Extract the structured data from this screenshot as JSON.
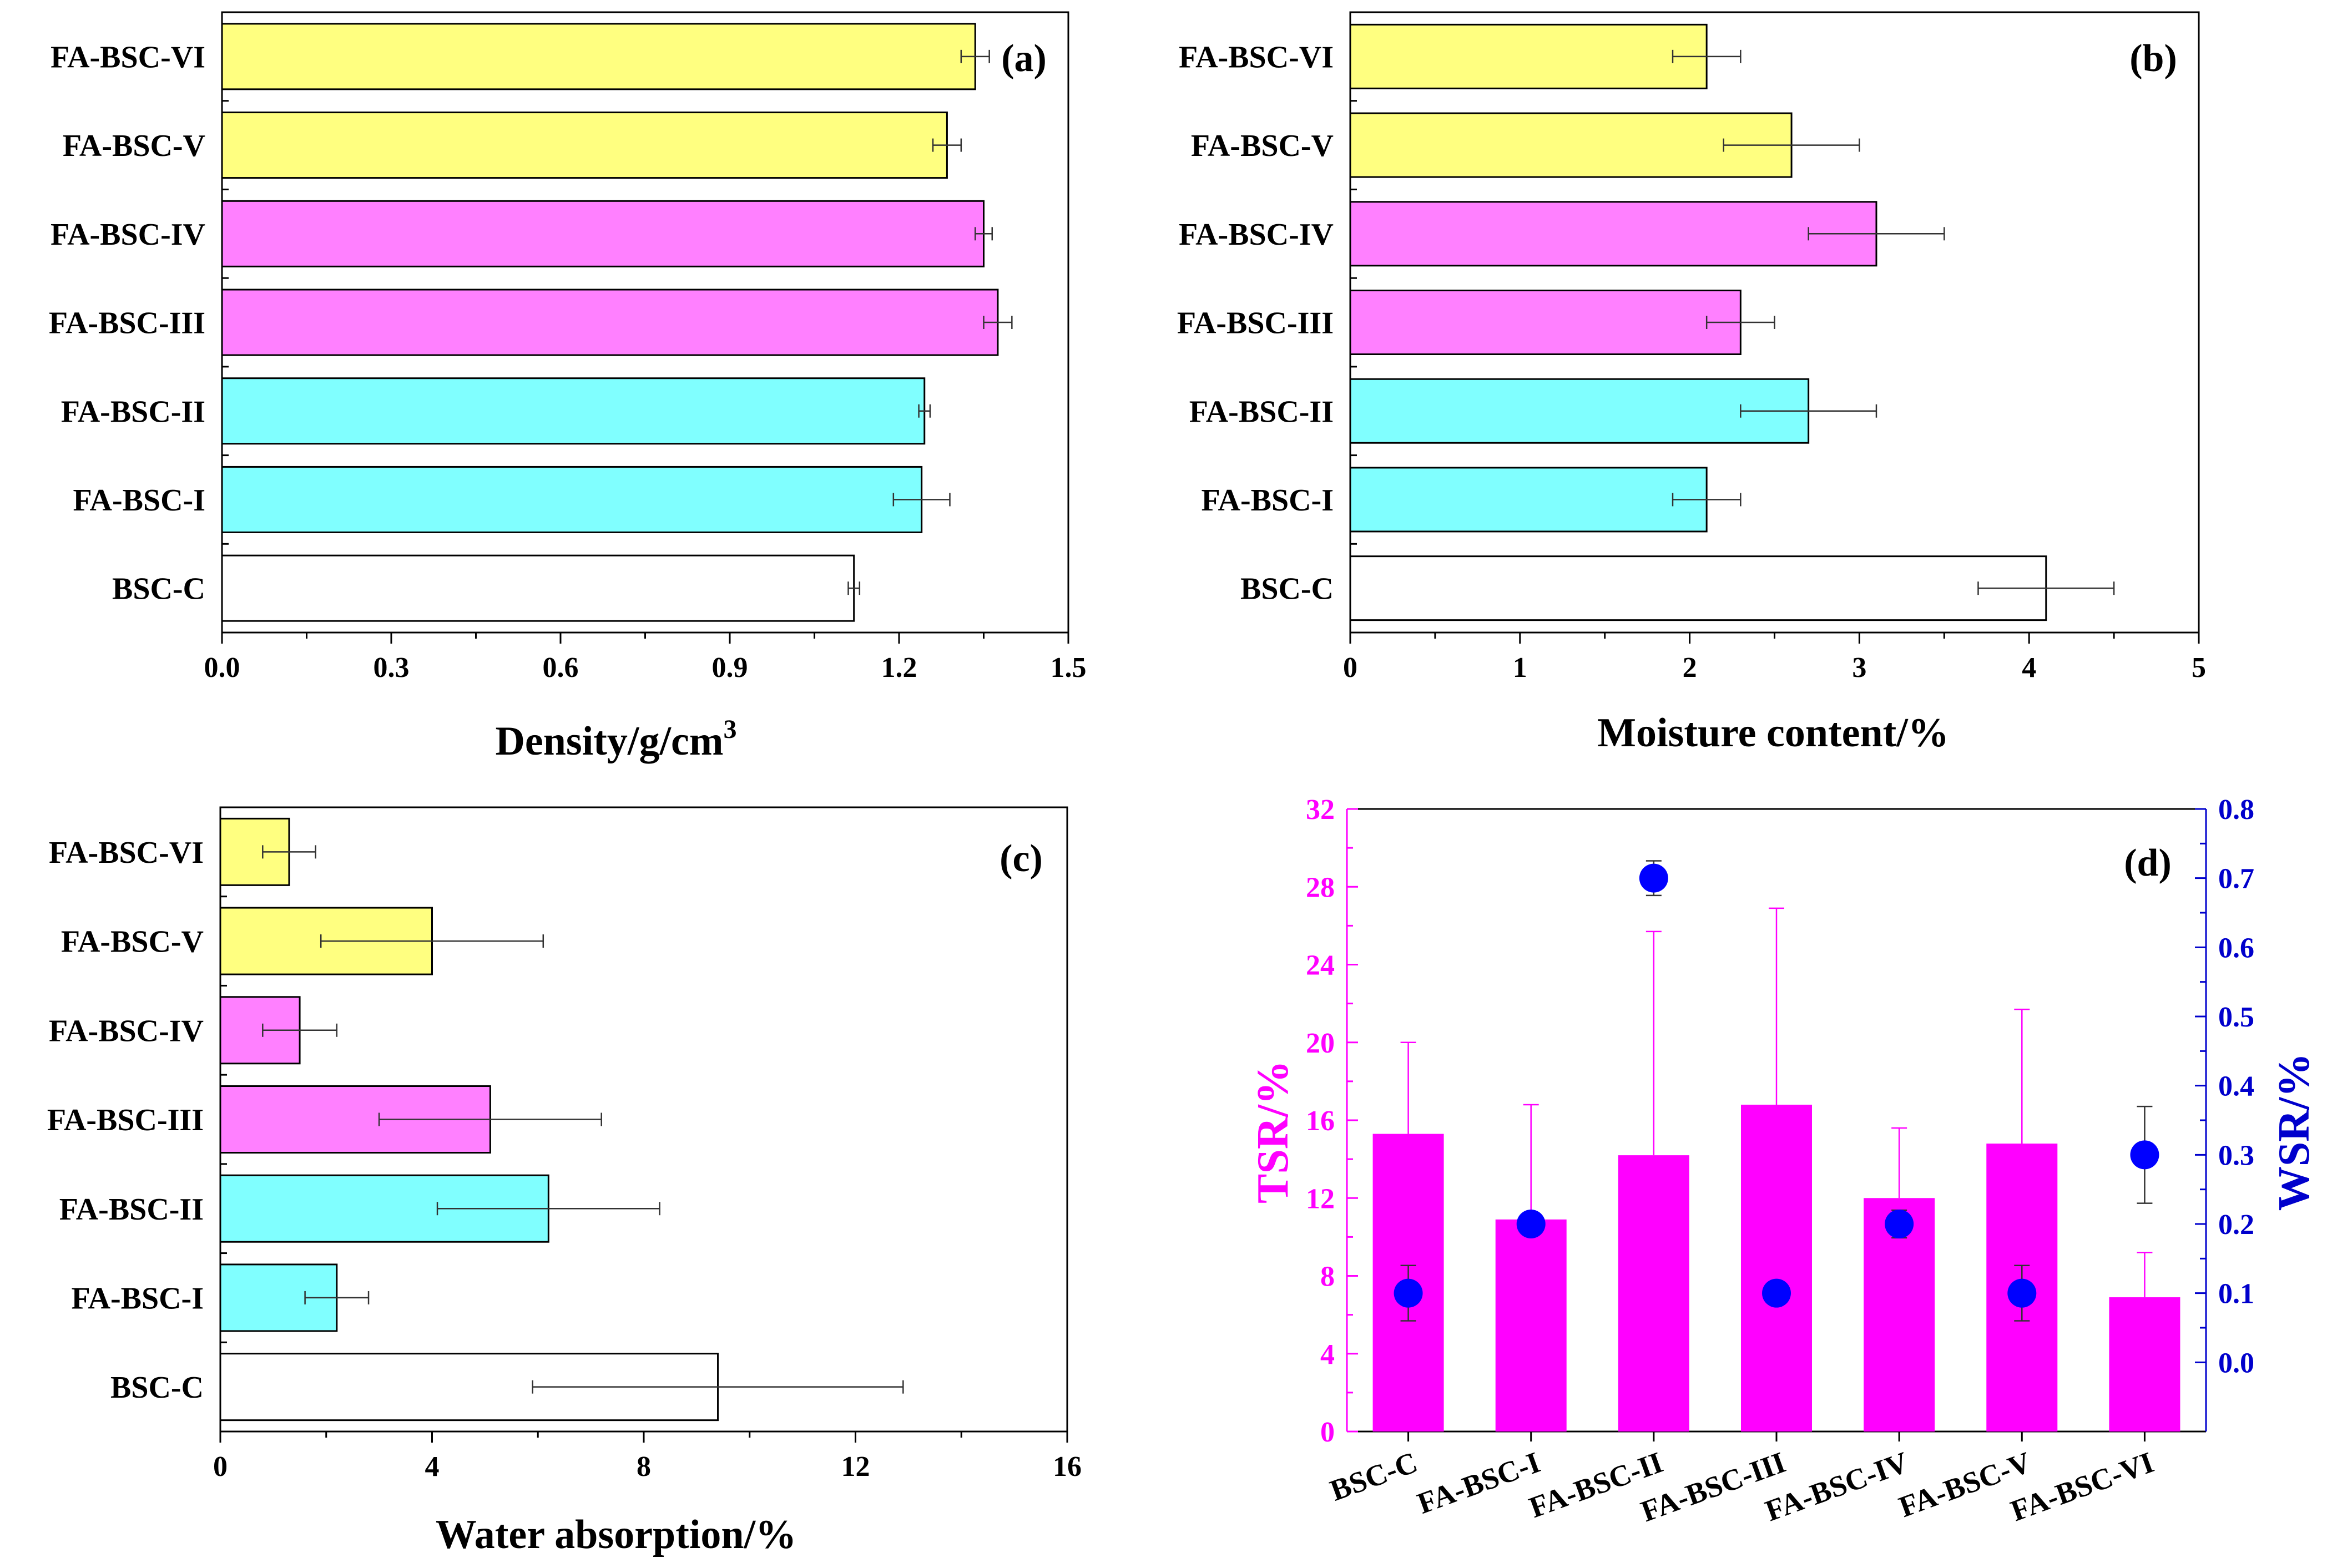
{
  "chart_data": [
    {
      "id": "a",
      "type": "bar",
      "orientation": "horizontal",
      "panel_label": "(a)",
      "xlabel": "Density/g/cm",
      "xlabel_sup": "3",
      "xlim": [
        0,
        1.5
      ],
      "xticks": [
        "0.0",
        "0.3",
        "0.6",
        "0.9",
        "1.2",
        "1.5"
      ],
      "tick_values": [
        0,
        0.3,
        0.6,
        0.9,
        1.2,
        1.5
      ],
      "categories": [
        "BSC-C",
        "FA-BSC-I",
        "FA-BSC-II",
        "FA-BSC-III",
        "FA-BSC-IV",
        "FA-BSC-V",
        "FA-BSC-VI"
      ],
      "values": [
        1.12,
        1.24,
        1.245,
        1.375,
        1.35,
        1.285,
        1.335
      ],
      "errors": [
        0.01,
        0.05,
        0.01,
        0.025,
        0.015,
        0.025,
        0.025
      ]
    },
    {
      "id": "b",
      "type": "bar",
      "orientation": "horizontal",
      "panel_label": "(b)",
      "xlabel": "Moisture content/%",
      "xlim": [
        0,
        5
      ],
      "xticks": [
        "0",
        "1",
        "2",
        "3",
        "4",
        "5"
      ],
      "tick_values": [
        0,
        1,
        2,
        3,
        4,
        5
      ],
      "categories": [
        "BSC-C",
        "FA-BSC-I",
        "FA-BSC-II",
        "FA-BSC-III",
        "FA-BSC-IV",
        "FA-BSC-V",
        "FA-BSC-VI"
      ],
      "values": [
        4.1,
        2.1,
        2.7,
        2.3,
        3.1,
        2.6,
        2.1
      ],
      "errors": [
        0.4,
        0.2,
        0.4,
        0.2,
        0.4,
        0.4,
        0.2
      ]
    },
    {
      "id": "c",
      "type": "bar",
      "orientation": "horizontal",
      "panel_label": "(c)",
      "xlabel": "Water absorption/%",
      "xlim": [
        0,
        16
      ],
      "xticks": [
        "0",
        "4",
        "8",
        "12",
        "16"
      ],
      "tick_values": [
        0,
        4,
        8,
        12,
        16
      ],
      "categories": [
        "BSC-C",
        "FA-BSC-I",
        "FA-BSC-II",
        "FA-BSC-III",
        "FA-BSC-IV",
        "FA-BSC-V",
        "FA-BSC-VI"
      ],
      "values": [
        9.4,
        2.2,
        6.2,
        5.1,
        1.5,
        4.0,
        1.3
      ],
      "errors": [
        3.5,
        0.6,
        2.1,
        2.1,
        0.7,
        2.1,
        0.5
      ]
    },
    {
      "id": "d",
      "type": "bar",
      "orientation": "vertical",
      "panel_label": "(d)",
      "ylabel_left": "TSR/%",
      "ylabel_right": "WSR/%",
      "ylim_left": [
        0,
        32
      ],
      "yticks_left": [
        "0",
        "4",
        "8",
        "12",
        "16",
        "20",
        "24",
        "28",
        "32"
      ],
      "tick_values_left": [
        0,
        4,
        8,
        12,
        16,
        20,
        24,
        28,
        32
      ],
      "ylim_right": [
        -0.1,
        0.8
      ],
      "yticks_right": [
        "0.0",
        "0.1",
        "0.2",
        "0.3",
        "0.4",
        "0.5",
        "0.6",
        "0.7",
        "0.8"
      ],
      "tick_values_right": [
        0,
        0.1,
        0.2,
        0.3,
        0.4,
        0.5,
        0.6,
        0.7,
        0.8
      ],
      "categories": [
        "BSC-C",
        "FA-BSC-I",
        "FA-BSC-II",
        "FA-BSC-III",
        "FA-BSC-IV",
        "FA-BSC-V",
        "FA-BSC-VI"
      ],
      "series": [
        {
          "name": "TSR",
          "type": "bar",
          "axis": "left",
          "values": [
            15.3,
            10.9,
            14.2,
            16.8,
            12.0,
            14.8,
            6.9
          ],
          "errors": [
            4.7,
            5.9,
            11.5,
            10.1,
            3.6,
            6.9,
            2.3
          ]
        },
        {
          "name": "WSR",
          "type": "scatter",
          "axis": "right",
          "values": [
            0.1,
            0.2,
            0.7,
            0.1,
            0.2,
            0.1,
            0.3
          ],
          "errors": [
            0.04,
            0.0,
            0.025,
            0.0,
            0.02,
            0.04,
            0.07
          ]
        }
      ]
    }
  ],
  "colors": {
    "BSC-C": "#ffffff",
    "FA-BSC-I": "#80ffff",
    "FA-BSC-II": "#80ffff",
    "FA-BSC-III": "#ff80ff",
    "FA-BSC-IV": "#ff80ff",
    "FA-BSC-V": "#ffff80",
    "FA-BSC-VI": "#ffff80",
    "tsr_bar": "#ff00ff",
    "tsr_axis": "#ff00ff",
    "wsr_marker": "#0000ff",
    "wsr_axis": "#0000cc",
    "axis": "#000000"
  }
}
